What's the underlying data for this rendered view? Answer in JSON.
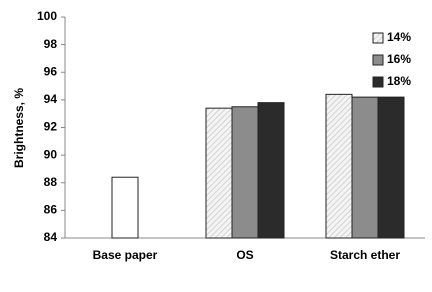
{
  "chart_data": {
    "type": "bar",
    "ylabel": "Brightness, %",
    "categories": [
      "Base paper",
      "OS",
      "Starch ether"
    ],
    "series": [
      {
        "name": "14%",
        "color": "#f4f4f4",
        "pattern": "hatch",
        "values": [
          null,
          93.4,
          94.4
        ]
      },
      {
        "name": "16%",
        "color": "#8c8c8c",
        "values": [
          null,
          93.5,
          94.2
        ]
      },
      {
        "name": "18%",
        "color": "#2b2b2b",
        "values": [
          null,
          93.8,
          94.2
        ]
      },
      {
        "color": "#ffffff",
        "values": [
          88.4,
          null,
          null
        ]
      }
    ],
    "ylim": [
      84,
      100
    ],
    "yticks": [
      84,
      86,
      88,
      90,
      92,
      94,
      96,
      98,
      100
    ],
    "grid": false,
    "legend": "upper right"
  }
}
